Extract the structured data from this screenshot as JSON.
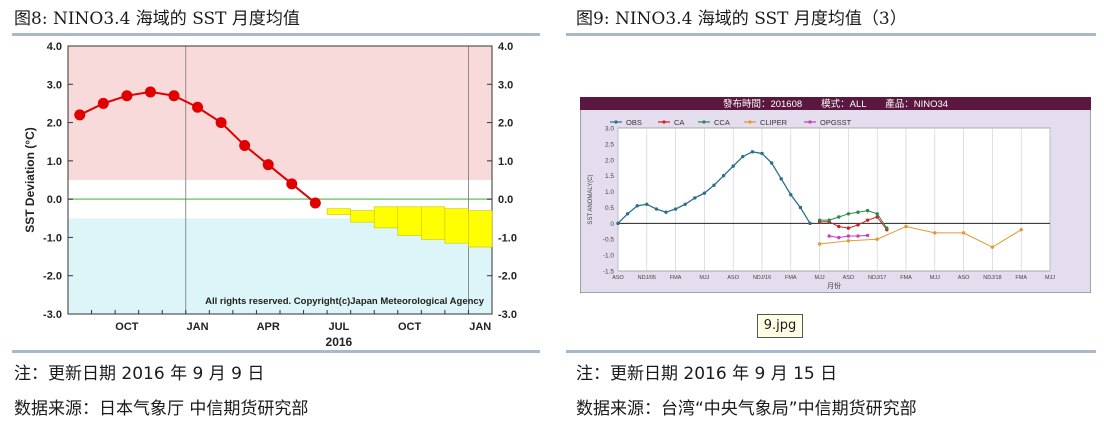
{
  "left": {
    "title": "图8: NINO3.4 海域的 SST 月度均值",
    "note": "注：更新日期 2016 年 9 月 9 日",
    "source": "数据来源：日本气象厅 中信期货研究部",
    "chart_data": {
      "type": "line",
      "ylabel": "SST Deviation (°C)",
      "yticks": [
        "4.0",
        "3.0",
        "2.0",
        "1.0",
        "0.0",
        "-1.0",
        "-2.0",
        "-3.0"
      ],
      "ylim": [
        -3,
        4
      ],
      "xticks": [
        "OCT",
        "JAN",
        "APR",
        "JUL",
        "OCT",
        "JAN"
      ],
      "year_label": "2016",
      "copyright": "All rights reserved. Copyright(c)Japan Meteorological Agency",
      "observed": {
        "months": [
          "2015-08",
          "2015-09",
          "2015-10",
          "2015-11",
          "2015-12",
          "2016-01",
          "2016-02",
          "2016-03",
          "2016-04",
          "2016-05",
          "2016-06",
          "2016-07"
        ],
        "values": [
          2.2,
          2.5,
          2.7,
          2.8,
          2.7,
          2.4,
          2.0,
          1.4,
          0.9,
          0.4,
          -0.1,
          null
        ]
      },
      "forecast": [
        {
          "month": "2016-07",
          "low": -0.25,
          "high": -0.4
        },
        {
          "month": "2016-08",
          "low": -0.3,
          "high": -0.6
        },
        {
          "month": "2016-09",
          "low": -0.2,
          "high": -0.75
        },
        {
          "month": "2016-10",
          "low": -0.2,
          "high": -0.95
        },
        {
          "month": "2016-11",
          "low": -0.2,
          "high": -1.05
        },
        {
          "month": "2016-12",
          "low": -0.25,
          "high": -1.15
        },
        {
          "month": "2017-01",
          "low": -0.3,
          "high": -1.25
        }
      ],
      "colors": {
        "warm_band": "#f9dada",
        "cold_band": "#dcf5f8",
        "observed": "#e00000",
        "forecast": "#ffff00",
        "zero": "#7ccc7c"
      }
    }
  },
  "right": {
    "title": "图9: NINO3.4 海域的 SST 月度均值（3）",
    "note": "注：更新日期 2016 年 9 月 15 日",
    "source": "数据来源：台湾“中央气象局”中信期货研究部",
    "tooltip": "9.jpg",
    "chart_data": {
      "type": "line",
      "header": "發布時間：201608　　模式：ALL　　產品：NINO34",
      "ylabel": "SST ANOMALY(C)",
      "xlabel": "月份",
      "yticks": [
        "3.0",
        "2.5",
        "2.0",
        "1.5",
        "1.0",
        "0.5",
        "0",
        "-0.5",
        "-1.0",
        "-1.5"
      ],
      "ylim": [
        -1.5,
        3.0
      ],
      "xticks": [
        "ASO",
        "NDJ/05",
        "FMA",
        "MJJ",
        "ASO",
        "NDJ/16",
        "FMA",
        "MJJ",
        "ASO",
        "NDJ/17",
        "FMA",
        "MJJ",
        "ASO",
        "NDJ/18",
        "FMA",
        "MJJ"
      ],
      "legend": [
        {
          "name": "OBS",
          "color": "#2a6f8a"
        },
        {
          "name": "CA",
          "color": "#cc2222"
        },
        {
          "name": "CCA",
          "color": "#2a8a4a"
        },
        {
          "name": "CLIPER",
          "color": "#e09a30"
        },
        {
          "name": "OPGSST",
          "color": "#c040c0"
        }
      ],
      "series": [
        {
          "name": "OBS",
          "x": [
            0,
            1,
            2,
            3,
            4,
            5,
            6,
            7,
            8,
            9,
            10,
            11,
            12,
            13,
            14,
            15,
            16,
            17,
            18,
            19,
            20
          ],
          "values": [
            0.0,
            0.3,
            0.55,
            0.6,
            0.45,
            0.35,
            0.45,
            0.6,
            0.8,
            0.95,
            1.2,
            1.5,
            1.8,
            2.1,
            2.25,
            2.2,
            1.9,
            1.4,
            0.9,
            0.5,
            0.0
          ]
        },
        {
          "name": "CA",
          "x": [
            21,
            22,
            23,
            24,
            25,
            26,
            27,
            28
          ],
          "values": [
            0.05,
            0.05,
            -0.1,
            -0.15,
            -0.05,
            0.1,
            0.2,
            -0.2
          ]
        },
        {
          "name": "CCA",
          "x": [
            21,
            22,
            23,
            24,
            25,
            26,
            27,
            28
          ],
          "values": [
            0.1,
            0.1,
            0.2,
            0.3,
            0.35,
            0.4,
            0.3,
            -0.15
          ]
        },
        {
          "name": "CLIPER",
          "x": [
            21,
            24,
            27,
            30,
            33,
            36,
            39,
            42
          ],
          "values": [
            -0.65,
            -0.55,
            -0.5,
            -0.1,
            -0.3,
            -0.3,
            -0.75,
            -0.2
          ]
        },
        {
          "name": "OPGSST",
          "x": [
            22,
            23,
            24,
            25,
            26
          ],
          "values": [
            -0.4,
            -0.45,
            -0.4,
            -0.4,
            -0.38
          ]
        }
      ]
    }
  }
}
